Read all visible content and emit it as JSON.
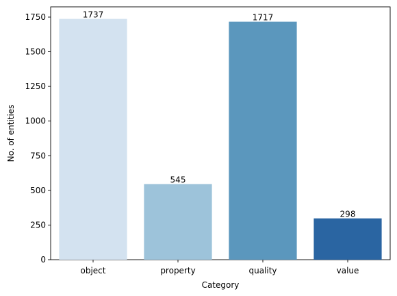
{
  "chart_data": {
    "type": "bar",
    "categories": [
      "object",
      "property",
      "quality",
      "value"
    ],
    "values": [
      1737,
      545,
      1717,
      298
    ],
    "data_labels": [
      "1737",
      "545",
      "1717",
      "298"
    ],
    "title": "",
    "xlabel": "Category",
    "ylabel": "No. of entities",
    "ylim": [
      0,
      1824
    ],
    "yticks": [
      0,
      250,
      500,
      750,
      1000,
      1250,
      1500,
      1750
    ],
    "ytick_labels": [
      "0",
      "250",
      "500",
      "750",
      "1000",
      "1250",
      "1500",
      "1750"
    ],
    "grid": false,
    "legend": "none",
    "colors": [
      "#d3e2f0",
      "#9dc3da",
      "#5b97bd",
      "#2a65a2"
    ]
  }
}
